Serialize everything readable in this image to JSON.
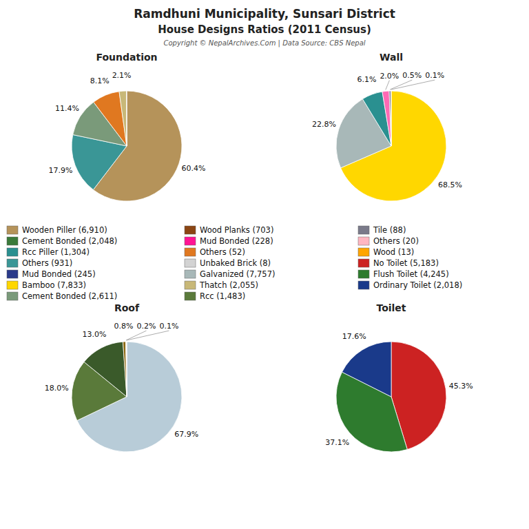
{
  "title": "Ramdhuni Municipality, Sunsari District",
  "subtitle": "House Designs Ratios (2011 Census)",
  "annotations": [
    "Copyright © NepalArchives.Com | Data Source: CBS Nepal"
  ],
  "legend_entries": [
    {
      "name": "Wooden Piller (6,910)",
      "color": "#b5935a"
    },
    {
      "name": "Cement Bonded (2,048)",
      "color": "#3a7a3a"
    },
    {
      "name": "Rcc Piller (1,304)",
      "color": "#2a9090"
    },
    {
      "name": "Others (931)",
      "color": "#3a9696"
    },
    {
      "name": "Mud Bonded (245)",
      "color": "#2a3a8a"
    },
    {
      "name": "Bamboo (7,833)",
      "color": "#ffd700"
    },
    {
      "name": "Cement Bonded (2,611)",
      "color": "#7a9a7a"
    },
    {
      "name": "Wood Planks (703)",
      "color": "#8b4513"
    },
    {
      "name": "Mud Bonded (228)",
      "color": "#ff1493"
    },
    {
      "name": "Others (52)",
      "color": "#e07820"
    },
    {
      "name": "Unbaked Brick (8)",
      "color": "#d3d3d3"
    },
    {
      "name": "Galvanized (7,757)",
      "color": "#a8b8b8"
    },
    {
      "name": "Thatch (2,055)",
      "color": "#c8b878"
    },
    {
      "name": "Rcc (1,483)",
      "color": "#5a7a3a"
    },
    {
      "name": "Tile (88)",
      "color": "#7a7a8a"
    },
    {
      "name": "Others (20)",
      "color": "#ffb6c1"
    },
    {
      "name": "Wood (13)",
      "color": "#ffa500"
    },
    {
      "name": "No Toilet (5,183)",
      "color": "#cc2222"
    },
    {
      "name": "Flush Toilet (4,245)",
      "color": "#2e7b2e"
    },
    {
      "name": "Ordinary Toilet (2,018)",
      "color": "#1a3a8a"
    }
  ],
  "chart_data": [
    {
      "type": "pie",
      "title": "Foundation",
      "values": [
        60.4,
        17.9,
        11.4,
        8.1,
        2.1,
        0.1
      ],
      "value_labels": [
        "60.4%",
        "17.9%",
        "11.4%",
        "8.1%",
        "2.1%",
        null
      ],
      "colors": [
        "#b5935a",
        "#3a9696",
        "#7a9a7a",
        "#e07820",
        "#c8b878",
        "#d0c0a0"
      ],
      "data_labels": true
    },
    {
      "type": "pie",
      "title": "Wall",
      "values": [
        68.5,
        22.8,
        6.1,
        2.0,
        0.5,
        0.1
      ],
      "value_labels": [
        "68.5%",
        "22.8%",
        "6.1%",
        "2.0%",
        "0.5%",
        "0.1%"
      ],
      "colors": [
        "#ffd700",
        "#a8b8b8",
        "#2a9090",
        "#ff69b4",
        "#7a7a8a",
        "#cc2222"
      ],
      "data_labels": true
    },
    {
      "type": "pie",
      "title": "Roof",
      "values": [
        67.9,
        18.0,
        13.0,
        0.8,
        0.2,
        0.1
      ],
      "value_labels": [
        "67.9%",
        "18.0%",
        "13.0%",
        "0.8%",
        "0.2%",
        "0.1%"
      ],
      "colors": [
        "#b8ccd8",
        "#5a7a3a",
        "#3a5a2a",
        "#8b6810",
        "#c8c8c8",
        "#ffa500"
      ],
      "data_labels": true
    },
    {
      "type": "pie",
      "title": "Toilet",
      "values": [
        45.3,
        37.1,
        17.6
      ],
      "value_labels": [
        "45.3%",
        "37.1%",
        "17.6%"
      ],
      "colors": [
        "#cc2222",
        "#2e7b2e",
        "#1a3a8a"
      ],
      "data_labels": true
    }
  ]
}
